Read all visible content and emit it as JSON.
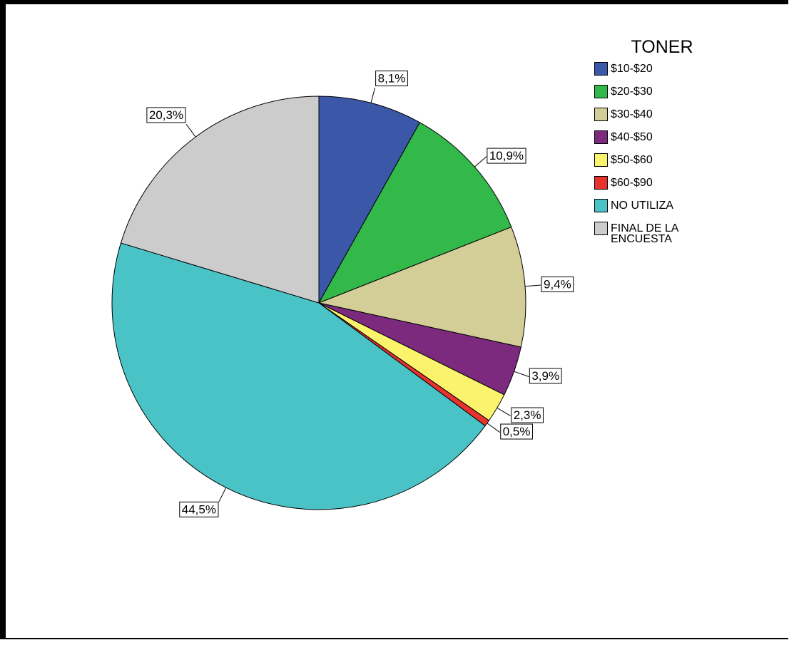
{
  "chart_data": {
    "type": "pie",
    "legend_title": "TONER",
    "categories": [
      "$10-$20",
      "$20-$30",
      "$30-$40",
      "$40-$50",
      "$50-$60",
      "$60-$90",
      "NO UTILIZA",
      "FINAL DE LA ENCUESTA"
    ],
    "values": [
      8.1,
      10.9,
      9.4,
      3.9,
      2.3,
      0.5,
      44.5,
      20.3
    ],
    "value_labels": [
      "8,1%",
      "10,9%",
      "9,4%",
      "3,9%",
      "2,3%",
      "0,5%",
      "44,5%",
      "20,3%"
    ],
    "colors": [
      "#3a57a8",
      "#33b84a",
      "#d3cd98",
      "#7b2a7e",
      "#fbf36b",
      "#e8322e",
      "#4ac3c6",
      "#cccccc"
    ],
    "legend": "top-right"
  }
}
